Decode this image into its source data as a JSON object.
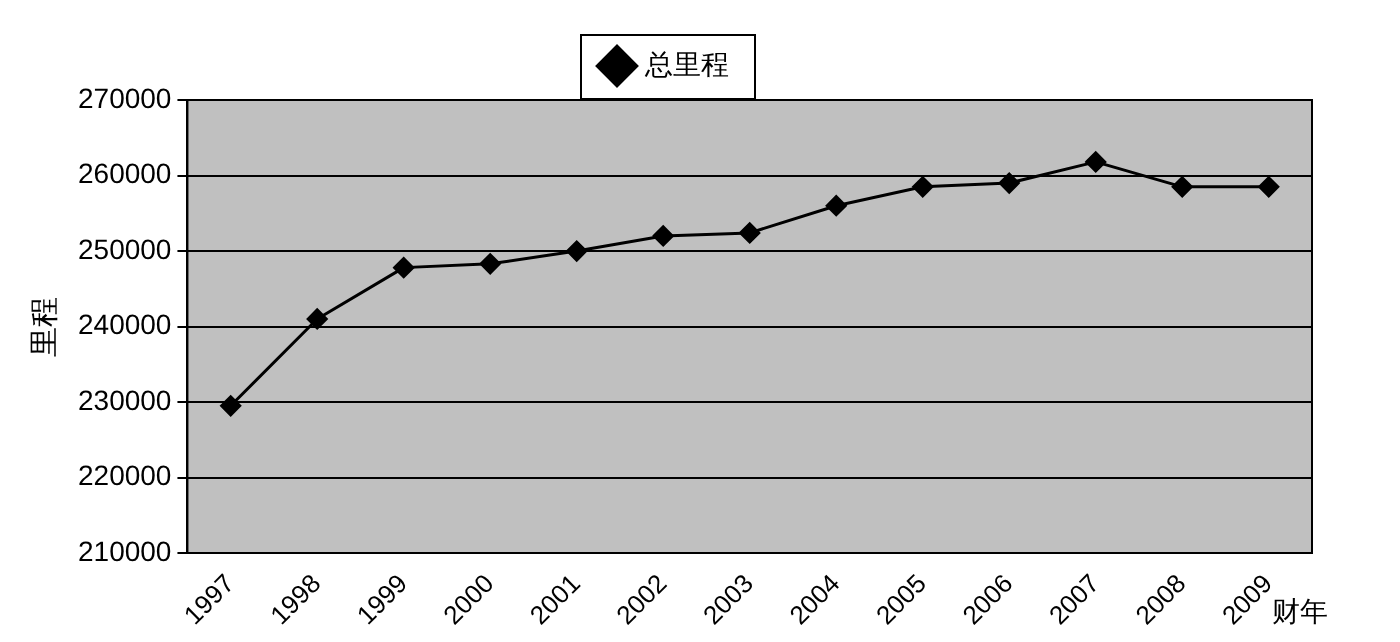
{
  "chart_data": {
    "type": "line",
    "xlabel": "财年",
    "ylabel": "里程",
    "categories": [
      "1997",
      "1998",
      "1999",
      "2000",
      "2001",
      "2002",
      "2003",
      "2004",
      "2005",
      "2006",
      "2007",
      "2008",
      "2009"
    ],
    "series": [
      {
        "name": "总里程",
        "color": "#000000",
        "values": [
          229500,
          241000,
          247800,
          248300,
          250000,
          252000,
          252400,
          256000,
          258500,
          259000,
          261800,
          258500,
          258500
        ]
      }
    ],
    "ylim": [
      210000,
      270000
    ],
    "yticks": [
      210000,
      220000,
      230000,
      240000,
      250000,
      260000,
      270000
    ],
    "grid": "y",
    "legend": "top",
    "marker": "diamond",
    "line_style": "solid"
  }
}
